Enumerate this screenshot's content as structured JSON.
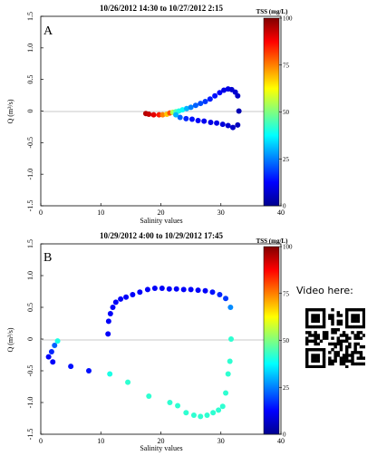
{
  "side": {
    "video_text": "Video here:"
  },
  "chart_data": [
    {
      "type": "scatter",
      "panel_label": "A",
      "title": "10/26/2012 14:30  to  10/27/2012 2:15",
      "xlabel": "Salinity values",
      "ylabel": "Q (m³/s)",
      "xlim": [
        0,
        40
      ],
      "ylim": [
        -1.5,
        1.5
      ],
      "xticks": [
        "0",
        "10",
        "20",
        "30",
        "40"
      ],
      "yticks": [
        "1.5",
        "1.0",
        "0.5",
        "0",
        "-0.5",
        "-1.0",
        "-1.5"
      ],
      "colorbar": {
        "label": "TSS (mg/L)",
        "min": 0,
        "max": 100,
        "ticks": [
          "100",
          "75",
          "50",
          "25",
          "0"
        ]
      },
      "points": [
        {
          "x": 17.5,
          "y": -0.04,
          "tss": 95
        },
        {
          "x": 18.0,
          "y": -0.05,
          "tss": 93
        },
        {
          "x": 18.8,
          "y": -0.06,
          "tss": 90
        },
        {
          "x": 19.7,
          "y": -0.06,
          "tss": 85
        },
        {
          "x": 20.3,
          "y": -0.06,
          "tss": 75
        },
        {
          "x": 21.0,
          "y": -0.05,
          "tss": 68
        },
        {
          "x": 21.5,
          "y": -0.03,
          "tss": 80
        },
        {
          "x": 22.0,
          "y": -0.02,
          "tss": 55
        },
        {
          "x": 22.5,
          "y": -0.01,
          "tss": 45
        },
        {
          "x": 23.0,
          "y": 0.0,
          "tss": 40
        },
        {
          "x": 23.6,
          "y": 0.02,
          "tss": 38
        },
        {
          "x": 24.3,
          "y": 0.04,
          "tss": 30
        },
        {
          "x": 25.0,
          "y": 0.06,
          "tss": 25
        },
        {
          "x": 25.8,
          "y": 0.09,
          "tss": 22
        },
        {
          "x": 26.6,
          "y": 0.12,
          "tss": 20
        },
        {
          "x": 27.4,
          "y": 0.15,
          "tss": 18
        },
        {
          "x": 28.2,
          "y": 0.19,
          "tss": 15
        },
        {
          "x": 29.0,
          "y": 0.24,
          "tss": 14
        },
        {
          "x": 29.8,
          "y": 0.29,
          "tss": 12
        },
        {
          "x": 30.5,
          "y": 0.33,
          "tss": 10
        },
        {
          "x": 31.2,
          "y": 0.35,
          "tss": 10
        },
        {
          "x": 31.8,
          "y": 0.34,
          "tss": 8
        },
        {
          "x": 32.4,
          "y": 0.3,
          "tss": 8
        },
        {
          "x": 32.8,
          "y": 0.24,
          "tss": 7
        },
        {
          "x": 33.0,
          "y": 0.0,
          "tss": 5
        },
        {
          "x": 32.8,
          "y": -0.22,
          "tss": 6
        },
        {
          "x": 32.0,
          "y": -0.26,
          "tss": 7
        },
        {
          "x": 31.2,
          "y": -0.23,
          "tss": 8
        },
        {
          "x": 30.3,
          "y": -0.21,
          "tss": 9
        },
        {
          "x": 29.3,
          "y": -0.19,
          "tss": 10
        },
        {
          "x": 28.3,
          "y": -0.18,
          "tss": 10
        },
        {
          "x": 27.2,
          "y": -0.16,
          "tss": 11
        },
        {
          "x": 26.2,
          "y": -0.15,
          "tss": 12
        },
        {
          "x": 25.2,
          "y": -0.13,
          "tss": 14
        },
        {
          "x": 24.2,
          "y": -0.12,
          "tss": 16
        },
        {
          "x": 23.2,
          "y": -0.1,
          "tss": 22
        },
        {
          "x": 22.5,
          "y": -0.06,
          "tss": 30
        }
      ]
    },
    {
      "type": "scatter",
      "panel_label": "B",
      "title": "10/29/2012 4:00  to  10/29/2012 17:45",
      "xlabel": "Salinity values",
      "ylabel": "Q (m³/s)",
      "xlim": [
        0,
        40
      ],
      "ylim": [
        -1.5,
        1.5
      ],
      "xticks": [
        "0",
        "10",
        "20",
        "30",
        "40"
      ],
      "yticks": [
        "1.5",
        "1.0",
        "0.5",
        "0",
        "-0.5",
        "-1.0",
        "-1.5"
      ],
      "colorbar": {
        "label": "TSS (mg/L)",
        "min": 0,
        "max": 100,
        "ticks": [
          "100",
          "75",
          "50",
          "25",
          "0"
        ]
      },
      "points": [
        {
          "x": 11.2,
          "y": 0.08,
          "tss": 12
        },
        {
          "x": 11.3,
          "y": 0.28,
          "tss": 12
        },
        {
          "x": 11.6,
          "y": 0.4,
          "tss": 12
        },
        {
          "x": 12.0,
          "y": 0.5,
          "tss": 12
        },
        {
          "x": 12.5,
          "y": 0.58,
          "tss": 12
        },
        {
          "x": 13.3,
          "y": 0.63,
          "tss": 12
        },
        {
          "x": 14.2,
          "y": 0.66,
          "tss": 12
        },
        {
          "x": 15.3,
          "y": 0.7,
          "tss": 12
        },
        {
          "x": 16.5,
          "y": 0.74,
          "tss": 12
        },
        {
          "x": 17.8,
          "y": 0.78,
          "tss": 12
        },
        {
          "x": 19.0,
          "y": 0.8,
          "tss": 12
        },
        {
          "x": 20.2,
          "y": 0.8,
          "tss": 12
        },
        {
          "x": 21.4,
          "y": 0.79,
          "tss": 12
        },
        {
          "x": 22.6,
          "y": 0.79,
          "tss": 12
        },
        {
          "x": 23.8,
          "y": 0.78,
          "tss": 12
        },
        {
          "x": 25.0,
          "y": 0.78,
          "tss": 12
        },
        {
          "x": 26.2,
          "y": 0.77,
          "tss": 12
        },
        {
          "x": 27.4,
          "y": 0.76,
          "tss": 12
        },
        {
          "x": 28.6,
          "y": 0.74,
          "tss": 14
        },
        {
          "x": 29.8,
          "y": 0.7,
          "tss": 16
        },
        {
          "x": 30.8,
          "y": 0.64,
          "tss": 18
        },
        {
          "x": 31.6,
          "y": 0.5,
          "tss": 26
        },
        {
          "x": 31.7,
          "y": 0.0,
          "tss": 42
        },
        {
          "x": 31.5,
          "y": -0.35,
          "tss": 42
        },
        {
          "x": 31.2,
          "y": -0.55,
          "tss": 42
        },
        {
          "x": 30.8,
          "y": -0.85,
          "tss": 42
        },
        {
          "x": 30.3,
          "y": -1.06,
          "tss": 42
        },
        {
          "x": 29.6,
          "y": -1.12,
          "tss": 42
        },
        {
          "x": 28.7,
          "y": -1.16,
          "tss": 42
        },
        {
          "x": 27.7,
          "y": -1.2,
          "tss": 42
        },
        {
          "x": 26.6,
          "y": -1.22,
          "tss": 42
        },
        {
          "x": 25.5,
          "y": -1.2,
          "tss": 42
        },
        {
          "x": 24.2,
          "y": -1.16,
          "tss": 42
        },
        {
          "x": 22.8,
          "y": -1.05,
          "tss": 42
        },
        {
          "x": 21.5,
          "y": -1.0,
          "tss": 42
        },
        {
          "x": 18.0,
          "y": -0.9,
          "tss": 42
        },
        {
          "x": 14.5,
          "y": -0.68,
          "tss": 42
        },
        {
          "x": 11.5,
          "y": -0.55,
          "tss": 40
        },
        {
          "x": 8.0,
          "y": -0.5,
          "tss": 14
        },
        {
          "x": 5.0,
          "y": -0.43,
          "tss": 14
        },
        {
          "x": 2.0,
          "y": -0.36,
          "tss": 12
        },
        {
          "x": 1.3,
          "y": -0.28,
          "tss": 12
        },
        {
          "x": 1.8,
          "y": -0.2,
          "tss": 16
        },
        {
          "x": 2.3,
          "y": -0.1,
          "tss": 22
        },
        {
          "x": 2.8,
          "y": -0.03,
          "tss": 40
        }
      ]
    }
  ]
}
